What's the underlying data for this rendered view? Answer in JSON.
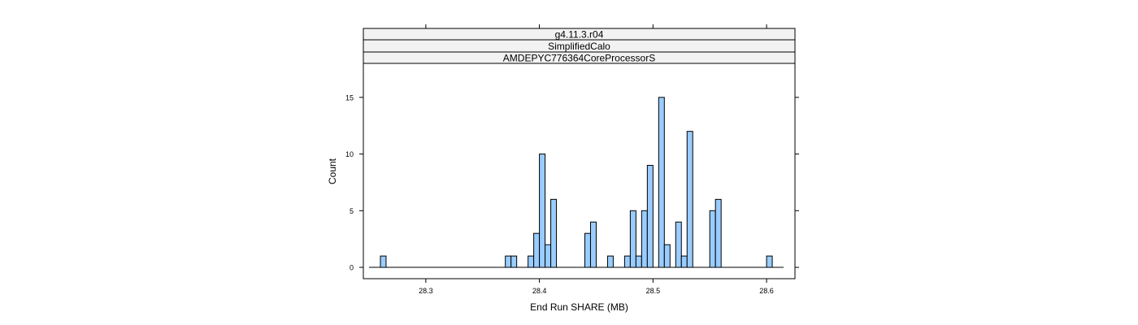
{
  "chart_data": {
    "type": "bar",
    "strips": [
      "g4.11.3.r04",
      "SimplifiedCalo",
      "AMDEPYC776364CoreProcessorS"
    ],
    "xlabel": "End Run SHARE (MB)",
    "ylabel": "Count",
    "xlim": [
      28.245,
      28.625
    ],
    "ylim": [
      -1,
      18
    ],
    "xticks": [
      28.3,
      28.4,
      28.5,
      28.6
    ],
    "yticks": [
      0,
      5,
      10,
      15
    ],
    "bin_width": 0.005,
    "bar_color": "#99CCFF",
    "baseline": [
      28.25,
      28.615
    ],
    "bins": [
      {
        "x": 28.2625,
        "count": 1
      },
      {
        "x": 28.3725,
        "count": 1
      },
      {
        "x": 28.3775,
        "count": 1
      },
      {
        "x": 28.3925,
        "count": 1
      },
      {
        "x": 28.3975,
        "count": 3
      },
      {
        "x": 28.4025,
        "count": 10
      },
      {
        "x": 28.4075,
        "count": 2
      },
      {
        "x": 28.4125,
        "count": 6
      },
      {
        "x": 28.4425,
        "count": 3
      },
      {
        "x": 28.4475,
        "count": 4
      },
      {
        "x": 28.4625,
        "count": 1
      },
      {
        "x": 28.4775,
        "count": 1
      },
      {
        "x": 28.4825,
        "count": 5
      },
      {
        "x": 28.4875,
        "count": 1
      },
      {
        "x": 28.4925,
        "count": 5
      },
      {
        "x": 28.4975,
        "count": 9
      },
      {
        "x": 28.5075,
        "count": 15
      },
      {
        "x": 28.5125,
        "count": 2
      },
      {
        "x": 28.5225,
        "count": 4
      },
      {
        "x": 28.5275,
        "count": 1
      },
      {
        "x": 28.5325,
        "count": 12
      },
      {
        "x": 28.5525,
        "count": 5
      },
      {
        "x": 28.5575,
        "count": 6
      },
      {
        "x": 28.6025,
        "count": 1
      }
    ]
  }
}
